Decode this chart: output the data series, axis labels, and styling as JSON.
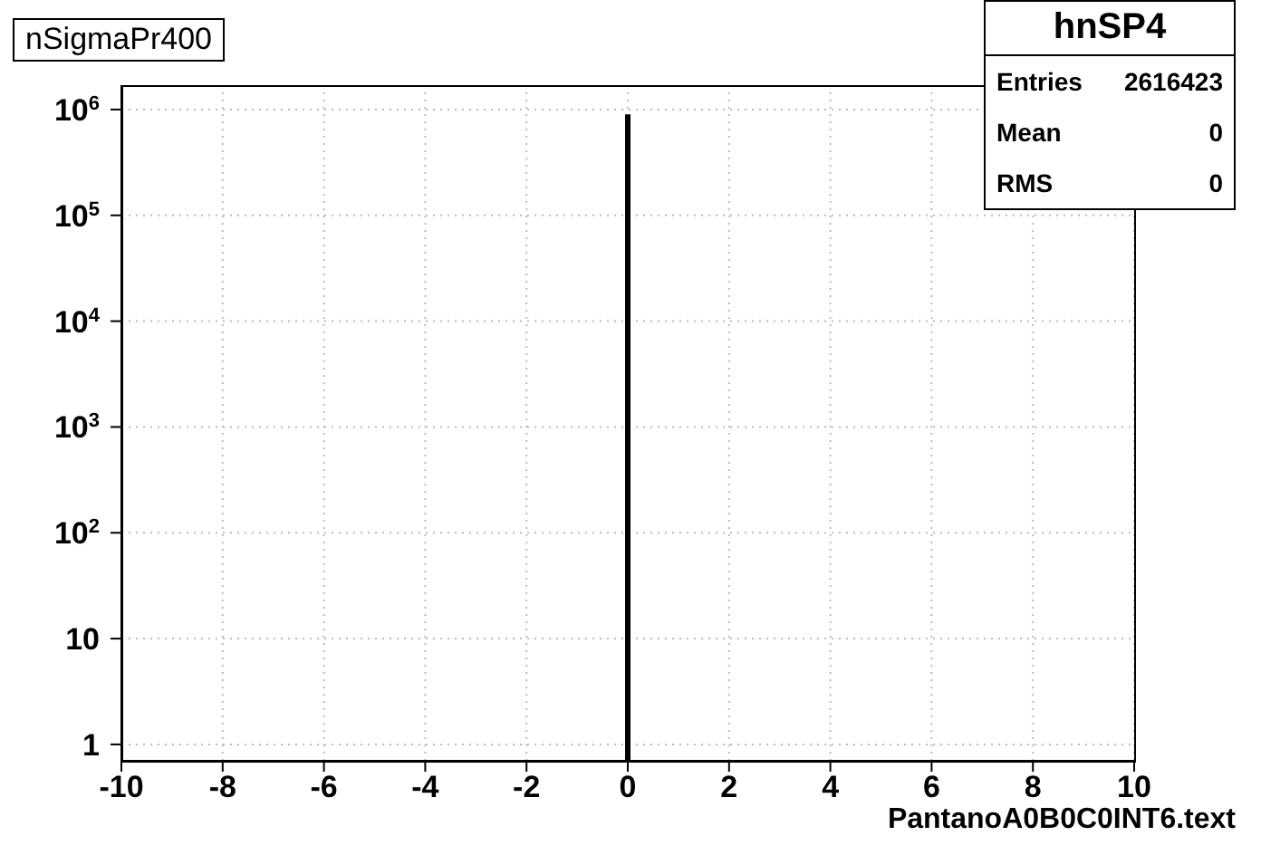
{
  "chart_data": {
    "type": "bar",
    "title": "nSigmaPr400",
    "xlabel": "PantanoA0B0C0INT6.text",
    "annotations": [
      "hnSP4",
      "Entries",
      "2616423",
      "Mean",
      "0",
      "RMS",
      "0"
    ],
    "x": [
      0
    ],
    "values": [
      900000
    ],
    "color": "#000000",
    "xlim": [
      -10,
      10
    ],
    "xticks": [
      -10,
      -8,
      -6,
      -4,
      -2,
      0,
      2,
      4,
      6,
      8,
      10
    ],
    "ylim": [
      0.7,
      1700000
    ],
    "log": true,
    "yticks": [
      {
        "value": 1,
        "label": "1"
      },
      {
        "value": 10,
        "label": "10"
      },
      {
        "value": 100,
        "label": "10$^{2}$"
      },
      {
        "value": 1000,
        "label": "10$^{3}$"
      },
      {
        "value": 10000,
        "label": "10$^{4}$"
      },
      {
        "value": 100000,
        "label": "10$^{5}$"
      },
      {
        "value": 1000000,
        "label": "10$^{6}$"
      }
    ],
    "grid": true
  }
}
